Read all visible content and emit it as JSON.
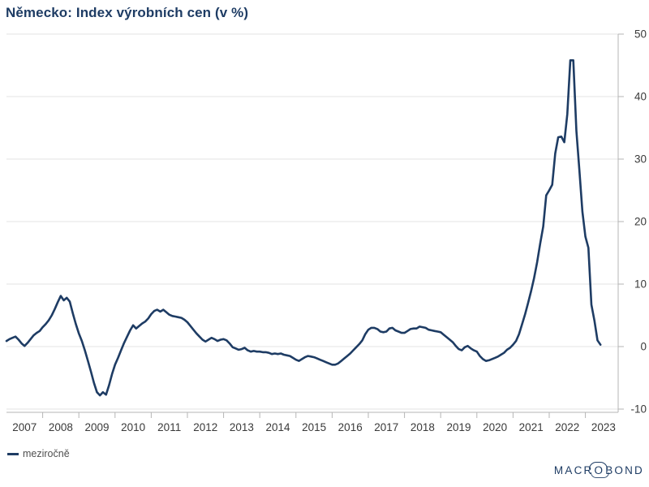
{
  "title": "Německo: Index výrobních cen (v %)",
  "legend": {
    "label": "meziročně"
  },
  "logo": {
    "pre": "MACR",
    "o": "O",
    "post": "BOND"
  },
  "colors": {
    "background": "#ffffff",
    "line": "#1e3c64",
    "title": "#1e3c64",
    "grid": "#e3e3e3",
    "axis": "#b5b5b5",
    "tick_label": "#3a3a3a",
    "legend_label": "#4f4f4f",
    "logo": "#1e3c64"
  },
  "chart_data": {
    "type": "line",
    "title": "Německo: Index výrobních cen (v %)",
    "xlabel": "",
    "ylabel": "",
    "unit": "%",
    "grid": "horizontal",
    "y_axis_side": "right",
    "legend_position": "bottom-left",
    "ylim": [
      -10,
      50
    ],
    "y_ticks": [
      -10,
      0,
      10,
      20,
      30,
      40,
      50
    ],
    "xlim_years": [
      2007,
      2023.9
    ],
    "x_tick_labels": [
      "2007",
      "2008",
      "2009",
      "2010",
      "2011",
      "2012",
      "2013",
      "2014",
      "2015",
      "2016",
      "2017",
      "2018",
      "2019",
      "2020",
      "2021",
      "2022",
      "2023"
    ],
    "series": [
      {
        "name": "meziročně",
        "color": "#1e3c64",
        "frequency": "monthly",
        "start": "2007-01",
        "end": "2023-06",
        "values": [
          0.9,
          1.2,
          1.4,
          1.6,
          1.1,
          0.5,
          0.1,
          0.6,
          1.2,
          1.8,
          2.2,
          2.5,
          3.1,
          3.6,
          4.2,
          5.0,
          6.0,
          7.1,
          8.1,
          7.4,
          7.8,
          7.2,
          5.3,
          3.6,
          2.1,
          0.9,
          -0.6,
          -2.3,
          -4.0,
          -5.8,
          -7.3,
          -7.8,
          -7.3,
          -7.7,
          -6.2,
          -4.4,
          -2.9,
          -1.8,
          -0.6,
          0.6,
          1.6,
          2.6,
          3.4,
          2.9,
          3.3,
          3.7,
          4.0,
          4.5,
          5.2,
          5.7,
          5.9,
          5.6,
          5.9,
          5.5,
          5.1,
          4.9,
          4.8,
          4.7,
          4.6,
          4.3,
          3.9,
          3.3,
          2.7,
          2.1,
          1.6,
          1.1,
          0.8,
          1.1,
          1.4,
          1.2,
          0.9,
          1.1,
          1.2,
          1.0,
          0.5,
          -0.1,
          -0.3,
          -0.5,
          -0.4,
          -0.2,
          -0.6,
          -0.8,
          -0.7,
          -0.8,
          -0.8,
          -0.9,
          -0.9,
          -1.0,
          -1.2,
          -1.1,
          -1.2,
          -1.1,
          -1.3,
          -1.4,
          -1.5,
          -1.8,
          -2.1,
          -2.3,
          -2.0,
          -1.7,
          -1.5,
          -1.6,
          -1.7,
          -1.9,
          -2.1,
          -2.3,
          -2.5,
          -2.7,
          -2.9,
          -2.9,
          -2.7,
          -2.3,
          -1.9,
          -1.5,
          -1.1,
          -0.6,
          -0.1,
          0.4,
          1.0,
          2.0,
          2.7,
          3.0,
          3.0,
          2.8,
          2.4,
          2.3,
          2.4,
          2.9,
          3.0,
          2.6,
          2.4,
          2.2,
          2.2,
          2.5,
          2.8,
          2.9,
          2.9,
          3.2,
          3.1,
          3.0,
          2.7,
          2.6,
          2.5,
          2.4,
          2.3,
          1.9,
          1.5,
          1.1,
          0.7,
          0.1,
          -0.4,
          -0.6,
          -0.1,
          0.1,
          -0.3,
          -0.6,
          -0.8,
          -1.5,
          -2.0,
          -2.3,
          -2.2,
          -2.0,
          -1.8,
          -1.6,
          -1.3,
          -1.0,
          -0.5,
          -0.2,
          0.3,
          0.9,
          2.0,
          3.6,
          5.2,
          7.0,
          8.9,
          11.0,
          13.5,
          16.5,
          19.2,
          24.2,
          25.0,
          25.9,
          30.9,
          33.5,
          33.6,
          32.7,
          37.2,
          45.8,
          45.8,
          34.5,
          28.2,
          21.6,
          17.6,
          15.8,
          6.7,
          4.1,
          1.0,
          0.3
        ]
      }
    ]
  }
}
